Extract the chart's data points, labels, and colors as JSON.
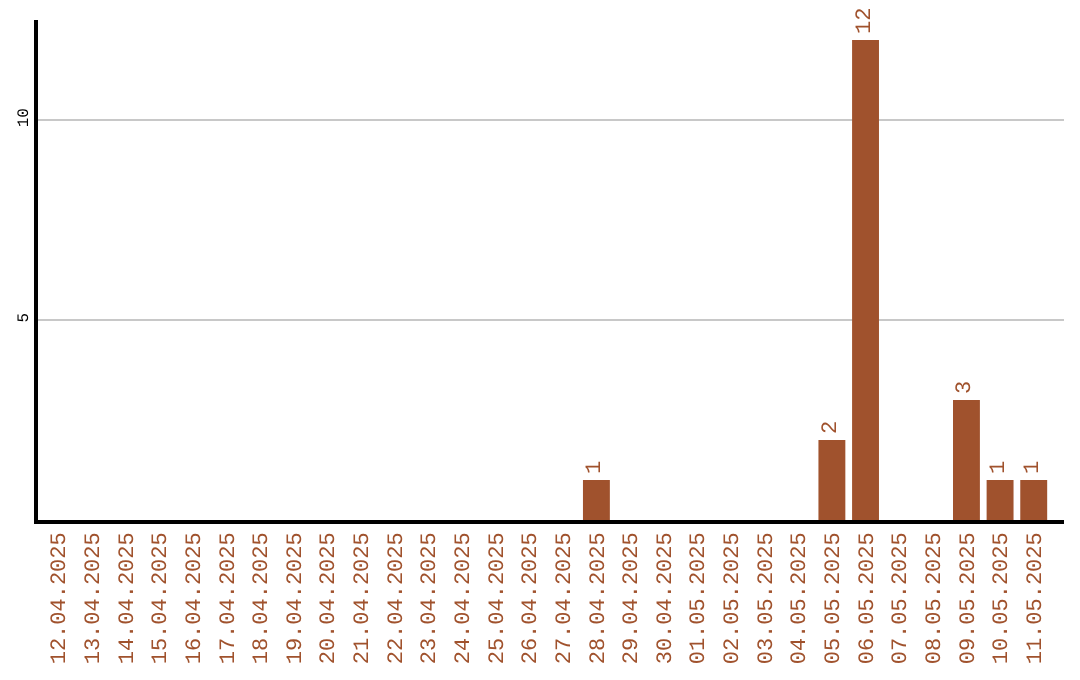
{
  "chart_data": {
    "type": "bar",
    "categories": [
      "12.04.2025",
      "13.04.2025",
      "14.04.2025",
      "15.04.2025",
      "16.04.2025",
      "17.04.2025",
      "18.04.2025",
      "19.04.2025",
      "20.04.2025",
      "21.04.2025",
      "22.04.2025",
      "23.04.2025",
      "24.04.2025",
      "25.04.2025",
      "26.04.2025",
      "27.04.2025",
      "28.04.2025",
      "29.04.2025",
      "30.04.2025",
      "01.05.2025",
      "02.05.2025",
      "03.05.2025",
      "04.05.2025",
      "05.05.2025",
      "06.05.2025",
      "07.05.2025",
      "08.05.2025",
      "09.05.2025",
      "10.05.2025",
      "11.05.2025"
    ],
    "values": [
      0,
      0,
      0,
      0,
      0,
      0,
      0,
      0,
      0,
      0,
      0,
      0,
      0,
      0,
      0,
      0,
      1,
      0,
      0,
      0,
      0,
      0,
      0,
      2,
      12,
      0,
      0,
      3,
      1,
      1
    ],
    "value_labels": [
      null,
      null,
      null,
      null,
      null,
      null,
      null,
      null,
      null,
      null,
      null,
      null,
      null,
      null,
      null,
      null,
      "1",
      null,
      null,
      null,
      null,
      null,
      null,
      "2",
      "12",
      null,
      null,
      "3",
      "1",
      "1"
    ],
    "color": "#a0522d",
    "ylim": [
      0,
      12.5
    ],
    "yticks": [
      5,
      10
    ],
    "grid": "y"
  }
}
